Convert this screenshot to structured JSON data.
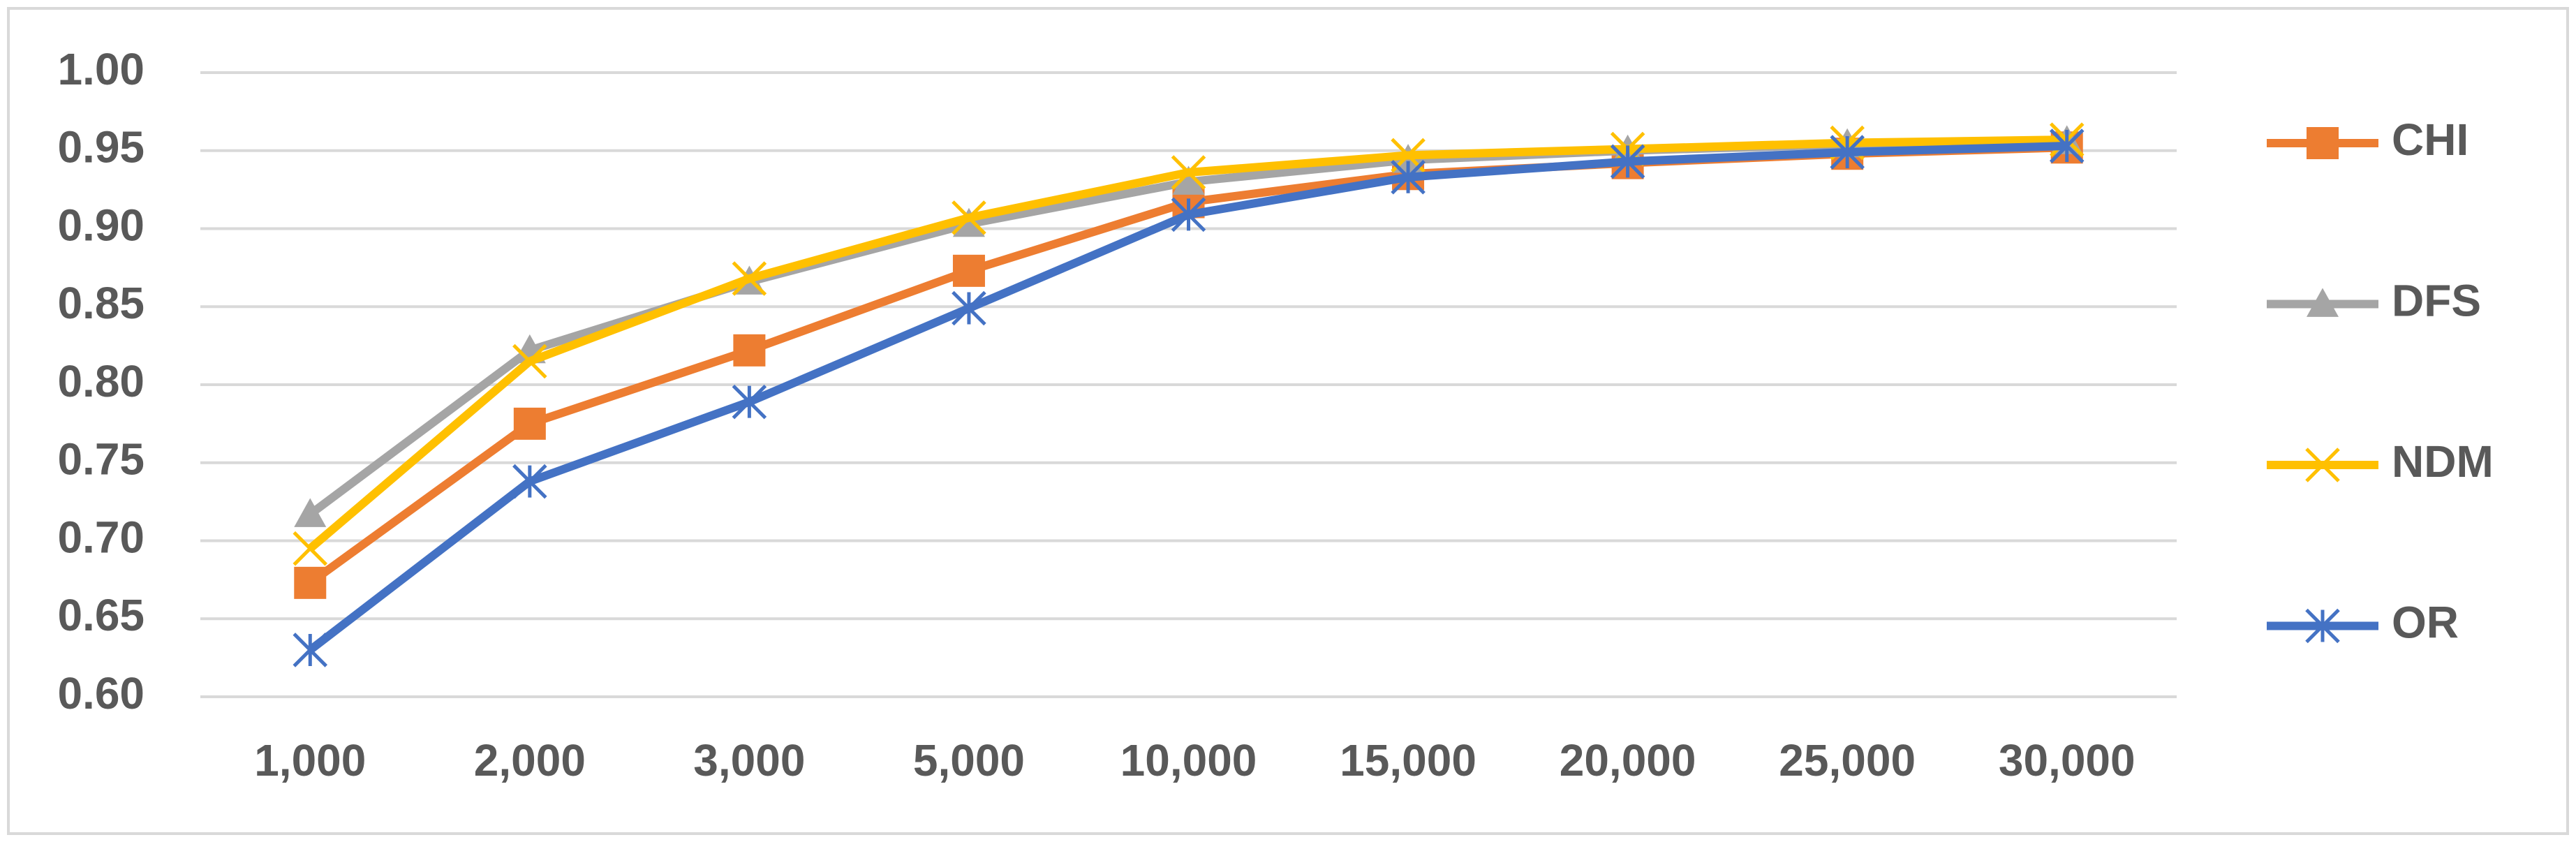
{
  "chart_data": {
    "type": "line",
    "categories": [
      "1,000",
      "2,000",
      "3,000",
      "5,000",
      "10,000",
      "15,000",
      "20,000",
      "25,000",
      "30,000"
    ],
    "series": [
      {
        "name": "CHI",
        "color": "#ed7d31",
        "values": [
          0.673,
          0.775,
          0.822,
          0.873,
          0.917,
          0.935,
          0.942,
          0.948,
          0.952
        ]
      },
      {
        "name": "DFS",
        "color": "#a5a5a5",
        "values": [
          0.717,
          0.822,
          0.866,
          0.903,
          0.93,
          0.944,
          0.95,
          0.954,
          0.956
        ]
      },
      {
        "name": "NDM",
        "color": "#ffc000",
        "values": [
          0.695,
          0.815,
          0.868,
          0.907,
          0.936,
          0.947,
          0.951,
          0.955,
          0.957
        ]
      },
      {
        "name": "OR",
        "color": "#4472c4",
        "values": [
          0.63,
          0.738,
          0.789,
          0.849,
          0.909,
          0.933,
          0.943,
          0.949,
          0.953
        ]
      }
    ],
    "ylim": [
      0.6,
      1.0
    ],
    "yticks": [
      {
        "value": 0.6,
        "label": "0.60"
      },
      0.65,
      {
        "value": 0.7,
        "label": "0.70"
      },
      0.75,
      {
        "value": 0.8,
        "label": "0.80"
      },
      0.85,
      {
        "value": 0.9,
        "label": "0.90"
      },
      0.95,
      {
        "value": 1.0,
        "label": "1.00"
      }
    ],
    "grid": true,
    "legend": "right"
  }
}
